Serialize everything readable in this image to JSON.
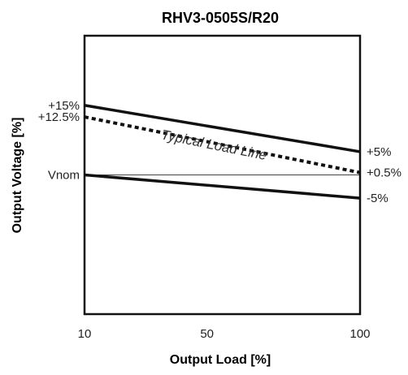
{
  "chart_data": {
    "type": "line",
    "title": "RHV3-0505S/R20",
    "xlabel": "Output Load [%]",
    "ylabel": "Output Voltage [%]",
    "xlim": [
      10,
      100
    ],
    "ylim": [
      -30,
      30
    ],
    "grid": false,
    "x_ticks": [
      {
        "value": 10,
        "label": "10"
      },
      {
        "value": 50,
        "label": "50"
      },
      {
        "value": 100,
        "label": "100"
      }
    ],
    "y_ticks_left": [
      {
        "value": 15,
        "label": "+15%"
      },
      {
        "value": 12.5,
        "label": "+12.5%"
      },
      {
        "value": 0,
        "label": "Vnom"
      }
    ],
    "y_ticks_right": [
      {
        "value": 5,
        "label": "+5%"
      },
      {
        "value": 0.5,
        "label": "+0.5%"
      },
      {
        "value": -5,
        "label": "-5%"
      }
    ],
    "series": [
      {
        "x": [
          10,
          100
        ],
        "values": [
          15,
          5
        ],
        "style": "solid-thick"
      },
      {
        "x": [
          10,
          100
        ],
        "values": [
          12.5,
          0.5
        ],
        "style": "dotted-thick"
      },
      {
        "x": [
          10,
          100
        ],
        "values": [
          0,
          0
        ],
        "style": "thin"
      },
      {
        "x": [
          10,
          100
        ],
        "values": [
          0,
          -5
        ],
        "style": "solid-thick"
      }
    ],
    "annotations": [
      {
        "text": "Typical Load Line",
        "x": 52,
        "y": 5.5
      }
    ]
  }
}
